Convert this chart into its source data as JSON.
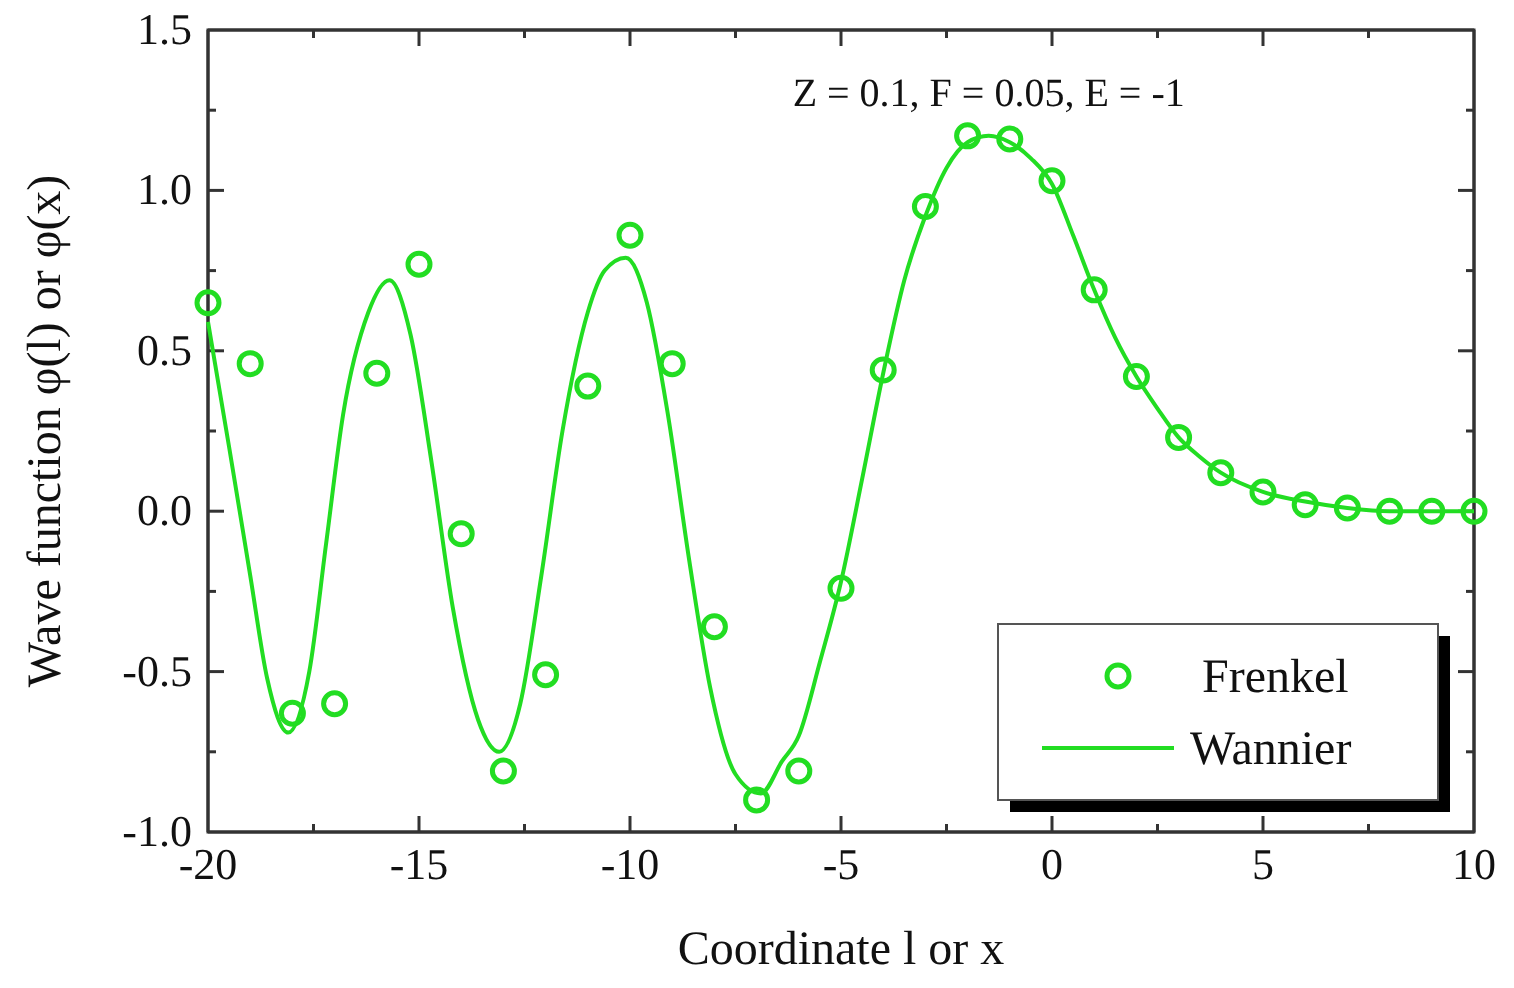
{
  "chart_data": {
    "type": "scatter",
    "xlabel": "Coordinate l or x",
    "ylabel": "Wave function φ(l) or φ(x)",
    "annotations": [
      "Z = 0.1, F = 0.05, E = -1"
    ],
    "xlim": [
      -20,
      10
    ],
    "ylim": [
      -1,
      1.5
    ],
    "xticks": [
      -20,
      {
        "value": -17.5,
        "label": null
      },
      -15,
      {
        "value": -12.5,
        "label": null
      },
      -10,
      {
        "value": -7.5,
        "label": null
      },
      -5,
      {
        "value": -2.5,
        "label": null
      },
      0,
      {
        "value": 2.5,
        "label": null
      },
      5,
      {
        "value": 7.5,
        "label": null
      },
      10
    ],
    "yticks": [
      {
        "value": -1,
        "label": "-1.0"
      },
      {
        "value": -0.75,
        "label": null
      },
      {
        "value": -0.5,
        "label": "-0.5"
      },
      {
        "value": -0.25,
        "label": null
      },
      {
        "value": 0,
        "label": "0.0"
      },
      {
        "value": 0.25,
        "label": null
      },
      {
        "value": 0.5,
        "label": "0.5"
      },
      {
        "value": 0.75,
        "label": null
      },
      {
        "value": 1,
        "label": "1.0"
      },
      {
        "value": 1.25,
        "label": null
      },
      {
        "value": 1.5,
        "label": "1.5"
      }
    ],
    "grid": false,
    "legend": "bottom right",
    "series": [
      {
        "name": "Frenkel",
        "marker": "circle",
        "color": "#22dd22",
        "x": [
          -20,
          -19,
          -18,
          -17,
          -16,
          -15,
          -14,
          -13,
          -12,
          -11,
          -10,
          -9,
          -8,
          -7,
          -6,
          -5,
          -4,
          -3,
          -2,
          -1,
          0,
          1,
          2,
          3,
          4,
          5,
          6,
          7,
          8,
          9,
          10
        ],
        "values": [
          0.65,
          0.46,
          -0.63,
          -0.6,
          0.43,
          0.77,
          -0.07,
          -0.81,
          -0.51,
          0.39,
          0.86,
          0.46,
          -0.36,
          -0.9,
          -0.81,
          -0.24,
          0.44,
          0.95,
          1.17,
          1.16,
          1.03,
          0.69,
          0.42,
          0.23,
          0.12,
          0.06,
          0.02,
          0.01,
          0,
          0,
          0
        ]
      },
      {
        "name": "Wannier",
        "type": "line",
        "color": "#22dd22",
        "line_style": "solid",
        "x": [
          -20,
          -19.5,
          -19,
          -18.6,
          -18.1,
          -17.6,
          -17.2,
          -16.8,
          -16.2,
          -15.7,
          -15.2,
          -14.7,
          -14.2,
          -13.6,
          -13.1,
          -12.6,
          -12.1,
          -11.6,
          -11,
          -10.6,
          -10.1,
          -9.6,
          -9.1,
          -8.6,
          -8.1,
          -7.5,
          -6.9,
          -6.4,
          -6,
          -5.5,
          -5,
          -4.5,
          -4,
          -3.5,
          -3,
          -2.5,
          -2,
          -1.5,
          -1,
          -0.5,
          0,
          0.5,
          1,
          1.5,
          2,
          2.5,
          3,
          3.5,
          4,
          5,
          6,
          7,
          8,
          10
        ],
        "values": [
          0.59,
          0.2,
          -0.2,
          -0.52,
          -0.69,
          -0.5,
          -0.1,
          0.3,
          0.62,
          0.72,
          0.55,
          0.15,
          -0.3,
          -0.65,
          -0.75,
          -0.6,
          -0.2,
          0.25,
          0.62,
          0.75,
          0.79,
          0.65,
          0.3,
          -0.15,
          -0.55,
          -0.82,
          -0.88,
          -0.78,
          -0.7,
          -0.47,
          -0.22,
          0.1,
          0.43,
          0.72,
          0.92,
          1.07,
          1.15,
          1.17,
          1.15,
          1.1,
          1.02,
          0.86,
          0.69,
          0.54,
          0.42,
          0.32,
          0.23,
          0.17,
          0.12,
          0.06,
          0.03,
          0.01,
          0,
          0
        ]
      }
    ]
  }
}
